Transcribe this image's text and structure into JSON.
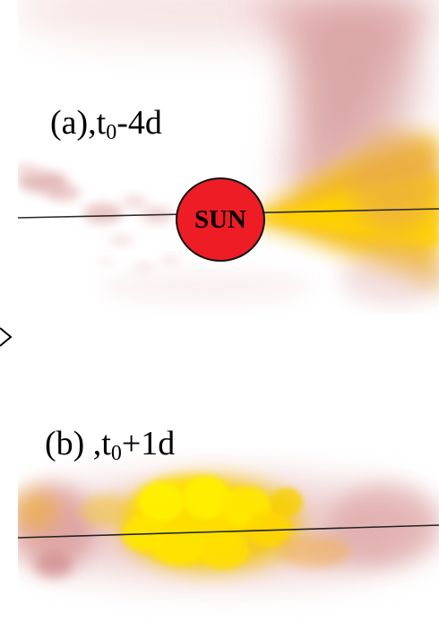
{
  "panels": [
    {
      "id": "a",
      "label_prefix": "(a),t",
      "label_sub": "0",
      "label_suffix": "-4d"
    },
    {
      "id": "b",
      "label_prefix": "(b) ,t",
      "label_sub": "0",
      "label_suffix": "+1d"
    }
  ],
  "sun": {
    "label": "SUN",
    "color": "#ee1c24"
  },
  "colors": {
    "cloud_pink": "#dca0a0",
    "cloud_yellow": "#f7d200",
    "cloud_bright_yellow": "#fff200",
    "background": "#ffffff"
  }
}
